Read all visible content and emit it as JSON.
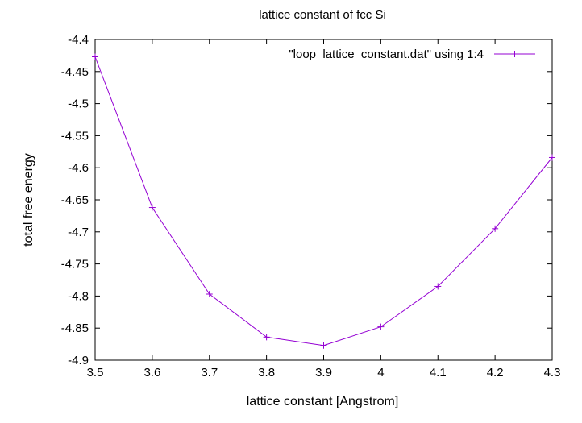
{
  "chart_data": {
    "type": "line",
    "title": "lattice constant of fcc Si",
    "xlabel": "lattice constant [Angstrom]",
    "ylabel": "total free energy",
    "xlim": [
      3.5,
      4.3
    ],
    "ylim": [
      -4.9,
      -4.4
    ],
    "xticks": [
      3.5,
      3.6,
      3.7,
      3.8,
      3.9,
      4.0,
      4.1,
      4.2,
      4.3
    ],
    "xtick_labels": [
      "3.5",
      "3.6",
      "3.7",
      "3.8",
      "3.9",
      "4",
      "4.1",
      "4.2",
      "4.3"
    ],
    "yticks": [
      -4.4,
      -4.45,
      -4.5,
      -4.55,
      -4.6,
      -4.65,
      -4.7,
      -4.75,
      -4.8,
      -4.85,
      -4.9
    ],
    "ytick_labels": [
      "-4.4",
      "-4.45",
      "-4.5",
      "-4.55",
      "-4.6",
      "-4.65",
      "-4.7",
      "-4.75",
      "-4.8",
      "-4.85",
      "-4.9"
    ],
    "grid": false,
    "legend_position": "top-right",
    "series": [
      {
        "name": "\"loop_lattice_constant.dat\" using 1:4",
        "color": "#9400d3",
        "marker": "plus",
        "x": [
          3.5,
          3.6,
          3.7,
          3.8,
          3.9,
          4.0,
          4.1,
          4.2,
          4.3
        ],
        "y": [
          -4.427,
          -4.662,
          -4.797,
          -4.864,
          -4.877,
          -4.848,
          -4.785,
          -4.695,
          -4.584
        ]
      }
    ]
  }
}
